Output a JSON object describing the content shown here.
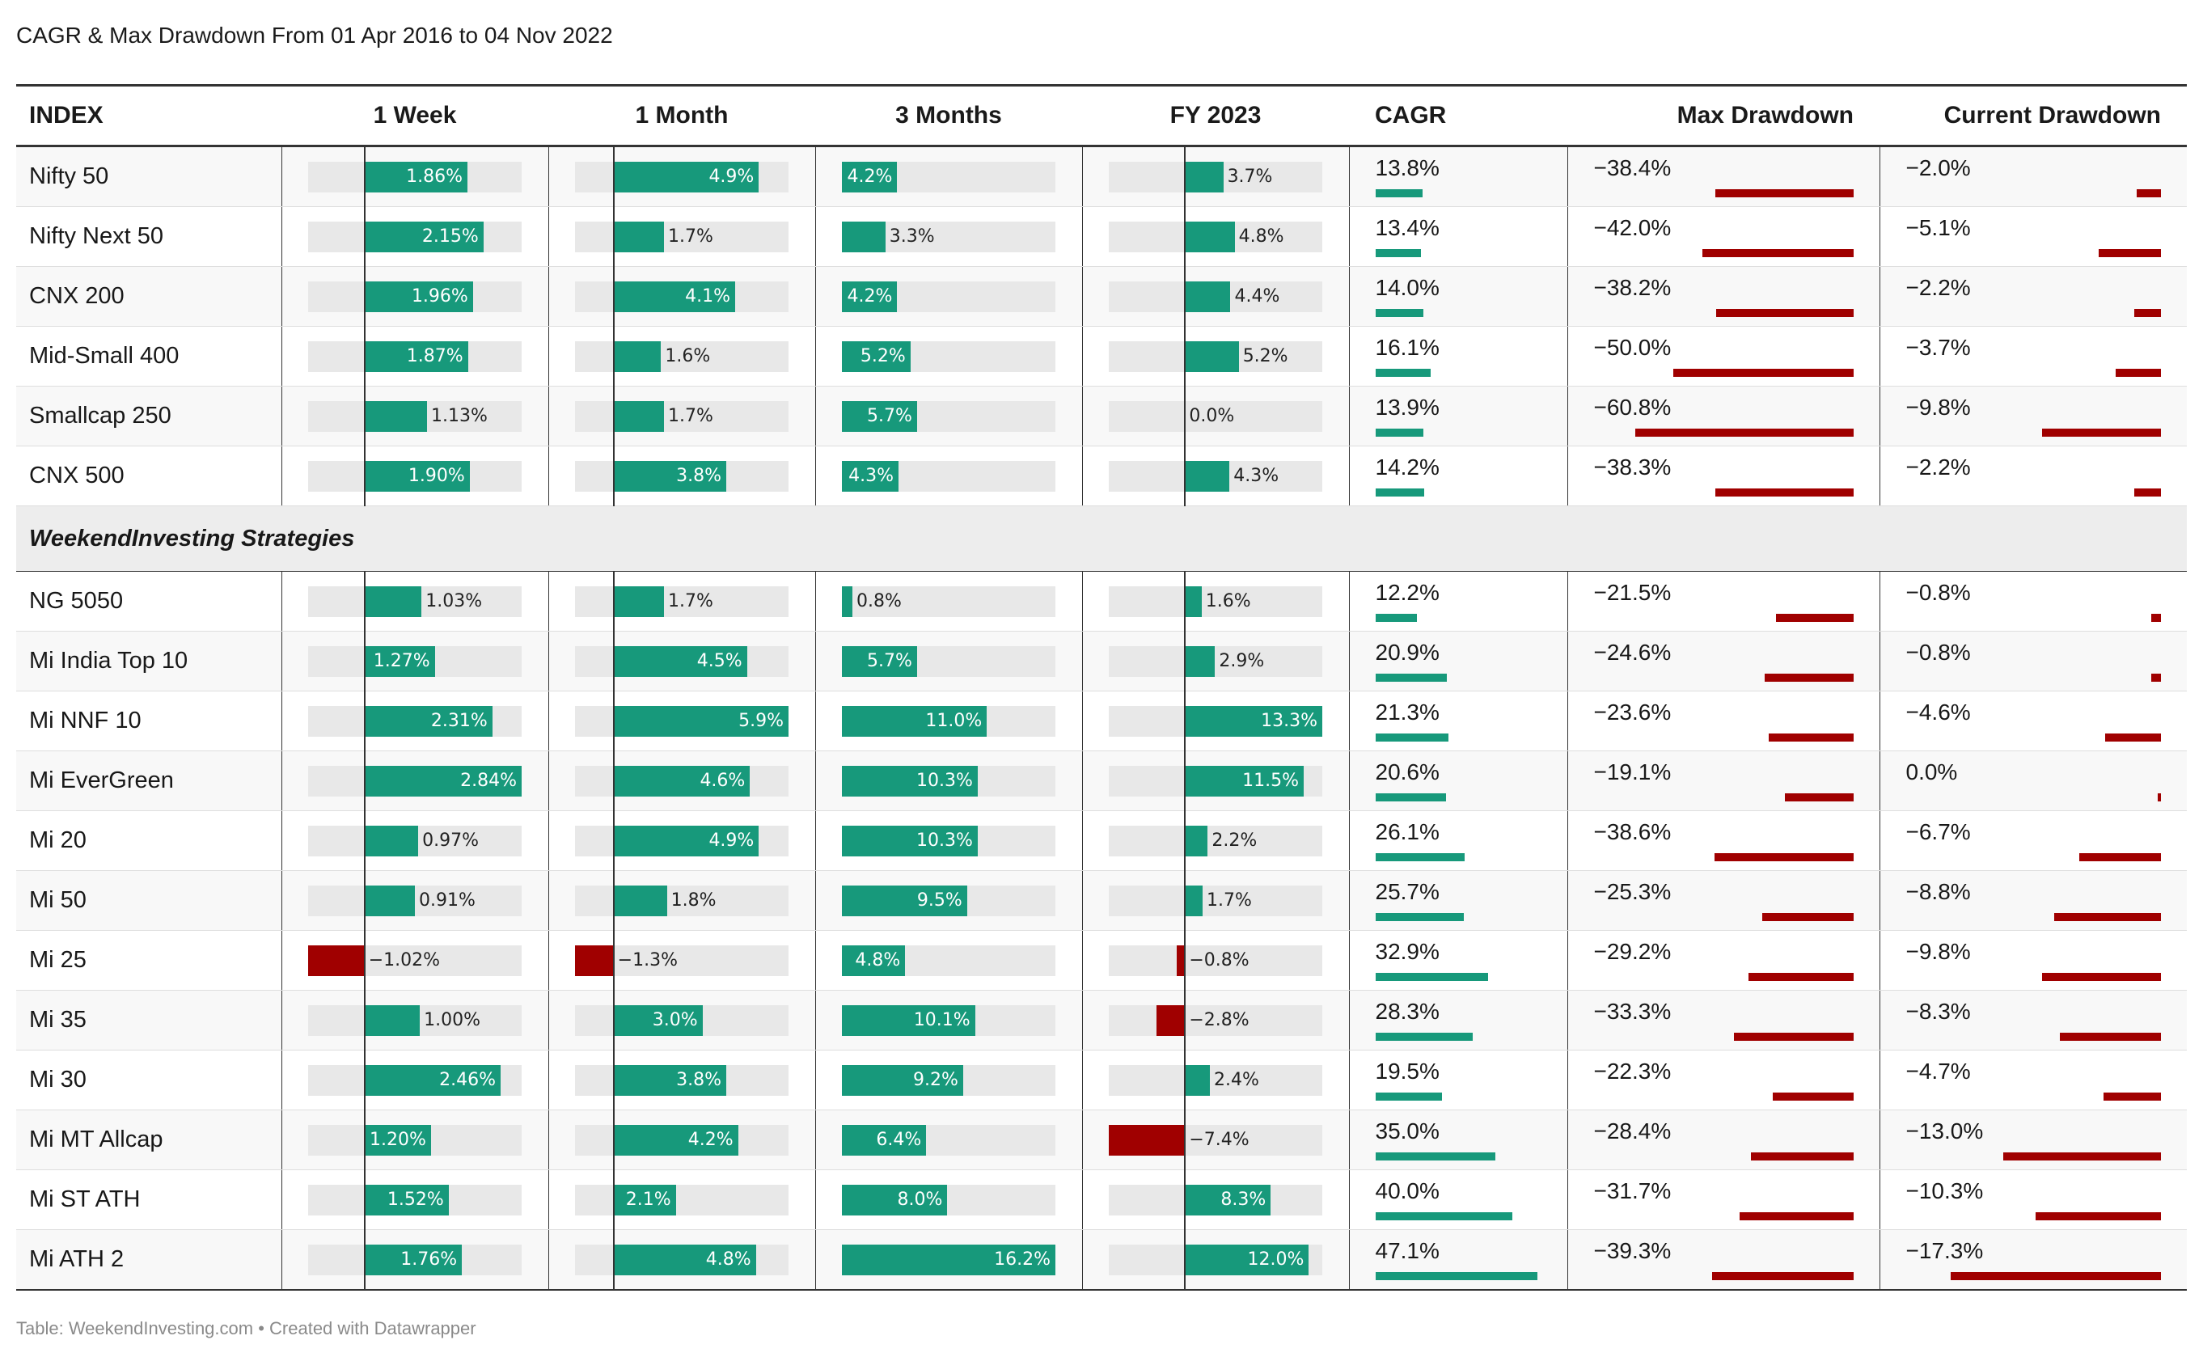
{
  "title": "CAGR & Max Drawdown From 01 Apr 2016 to 04 Nov 2022",
  "footer": "Table: WeekendInvesting.com • Created with Datawrapper",
  "colors": {
    "positive": "#17997b",
    "negative": "#a00000",
    "track": "#e8e8e8"
  },
  "headers": {
    "index": "INDEX",
    "week": "1 Week",
    "month": "1 Month",
    "three_months": "3 Months",
    "fy": "FY 2023",
    "cagr": "CAGR",
    "max_dd": "Max Drawdown",
    "cur_dd": "Current Drawdown"
  },
  "section_label": "WeekendInvesting Strategies",
  "chart_data": {
    "type": "table",
    "columns": [
      "INDEX",
      "1 Week",
      "1 Month",
      "3 Months",
      "FY 2023",
      "CAGR",
      "Max Drawdown",
      "Current Drawdown"
    ],
    "bar_domains": {
      "week": [
        -1.02,
        2.84
      ],
      "month": [
        -1.3,
        5.9
      ],
      "three_months": [
        0,
        16.2
      ],
      "fy": [
        -7.4,
        13.3
      ],
      "cagr": [
        0,
        47.1
      ],
      "max_dd": [
        -60.8,
        0
      ],
      "cur_dd": [
        -17.3,
        0
      ]
    },
    "indices": [
      {
        "name": "Nifty 50",
        "week": 1.86,
        "month": 4.9,
        "three_months": 4.2,
        "fy": 3.7,
        "cagr": 13.8,
        "max_dd": -38.4,
        "cur_dd": -2.0
      },
      {
        "name": "Nifty Next 50",
        "week": 2.15,
        "month": 1.7,
        "three_months": 3.3,
        "fy": 4.8,
        "cagr": 13.4,
        "max_dd": -42.0,
        "cur_dd": -5.1
      },
      {
        "name": "CNX 200",
        "week": 1.96,
        "month": 4.1,
        "three_months": 4.2,
        "fy": 4.4,
        "cagr": 14.0,
        "max_dd": -38.2,
        "cur_dd": -2.2
      },
      {
        "name": "Mid-Small 400",
        "week": 1.87,
        "month": 1.6,
        "three_months": 5.2,
        "fy": 5.2,
        "cagr": 16.1,
        "max_dd": -50.0,
        "cur_dd": -3.7
      },
      {
        "name": "Smallcap 250",
        "week": 1.13,
        "month": 1.7,
        "three_months": 5.7,
        "fy": 0.0,
        "cagr": 13.9,
        "max_dd": -60.8,
        "cur_dd": -9.8
      },
      {
        "name": "CNX 500",
        "week": 1.9,
        "month": 3.8,
        "three_months": 4.3,
        "fy": 4.3,
        "cagr": 14.2,
        "max_dd": -38.3,
        "cur_dd": -2.2
      }
    ],
    "strategies": [
      {
        "name": "NG 5050",
        "week": 1.03,
        "month": 1.7,
        "three_months": 0.8,
        "fy": 1.6,
        "cagr": 12.2,
        "max_dd": -21.5,
        "cur_dd": -0.8
      },
      {
        "name": "Mi India Top 10",
        "week": 1.27,
        "month": 4.5,
        "three_months": 5.7,
        "fy": 2.9,
        "cagr": 20.9,
        "max_dd": -24.6,
        "cur_dd": -0.8
      },
      {
        "name": "Mi NNF 10",
        "week": 2.31,
        "month": 5.9,
        "three_months": 11.0,
        "fy": 13.3,
        "cagr": 21.3,
        "max_dd": -23.6,
        "cur_dd": -4.6
      },
      {
        "name": "Mi EverGreen",
        "week": 2.84,
        "month": 4.6,
        "three_months": 10.3,
        "fy": 11.5,
        "cagr": 20.6,
        "max_dd": -19.1,
        "cur_dd": 0.0
      },
      {
        "name": "Mi 20",
        "week": 0.97,
        "month": 4.9,
        "three_months": 10.3,
        "fy": 2.2,
        "cagr": 26.1,
        "max_dd": -38.6,
        "cur_dd": -6.7
      },
      {
        "name": "Mi 50",
        "week": 0.91,
        "month": 1.8,
        "three_months": 9.5,
        "fy": 1.7,
        "cagr": 25.7,
        "max_dd": -25.3,
        "cur_dd": -8.8
      },
      {
        "name": "Mi 25",
        "week": -1.02,
        "month": -1.3,
        "three_months": 4.8,
        "fy": -0.8,
        "cagr": 32.9,
        "max_dd": -29.2,
        "cur_dd": -9.8
      },
      {
        "name": "Mi 35",
        "week": 1.0,
        "month": 3.0,
        "three_months": 10.1,
        "fy": -2.8,
        "cagr": 28.3,
        "max_dd": -33.3,
        "cur_dd": -8.3
      },
      {
        "name": "Mi 30",
        "week": 2.46,
        "month": 3.8,
        "three_months": 9.2,
        "fy": 2.4,
        "cagr": 19.5,
        "max_dd": -22.3,
        "cur_dd": -4.7
      },
      {
        "name": "Mi MT Allcap",
        "week": 1.2,
        "month": 4.2,
        "three_months": 6.4,
        "fy": -7.4,
        "cagr": 35.0,
        "max_dd": -28.4,
        "cur_dd": -13.0
      },
      {
        "name": "Mi ST ATH",
        "week": 1.52,
        "month": 2.1,
        "three_months": 8.0,
        "fy": 8.3,
        "cagr": 40.0,
        "max_dd": -31.7,
        "cur_dd": -10.3
      },
      {
        "name": "Mi ATH 2",
        "week": 1.76,
        "month": 4.8,
        "three_months": 16.2,
        "fy": 12.0,
        "cagr": 47.1,
        "max_dd": -39.3,
        "cur_dd": -17.3
      }
    ]
  }
}
